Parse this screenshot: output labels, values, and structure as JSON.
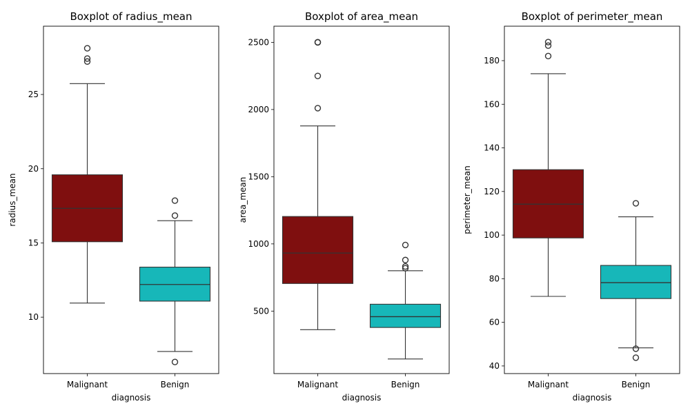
{
  "chart_data": [
    {
      "type": "box",
      "title": "Boxplot of radius_mean",
      "xlabel": "diagnosis",
      "ylabel": "radius_mean",
      "categories": [
        "Malignant",
        "Benign"
      ],
      "colors": [
        "#7f0f0f",
        "#17b7b9"
      ],
      "ylim": [
        6.2,
        29.6
      ],
      "yticks": [
        10,
        15,
        20,
        25
      ],
      "boxes": [
        {
          "category": "Malignant",
          "whisker_low": 10.95,
          "q1": 15.08,
          "median": 17.33,
          "q3": 19.59,
          "whisker_high": 25.73,
          "outliers": [
            27.22,
            27.42,
            28.11
          ]
        },
        {
          "category": "Benign",
          "whisker_low": 7.69,
          "q1": 11.08,
          "median": 12.2,
          "q3": 13.37,
          "whisker_high": 16.5,
          "outliers": [
            6.98,
            16.84,
            17.85
          ]
        }
      ]
    },
    {
      "type": "box",
      "title": "Boxplot of area_mean",
      "xlabel": "diagnosis",
      "ylabel": "area_mean",
      "categories": [
        "Malignant",
        "Benign"
      ],
      "colors": [
        "#7f0f0f",
        "#17b7b9"
      ],
      "ylim": [
        35,
        2620
      ],
      "yticks": [
        500,
        1000,
        1500,
        2000,
        2500
      ],
      "boxes": [
        {
          "category": "Malignant",
          "whisker_low": 361.6,
          "q1": 705.3,
          "median": 932.0,
          "q3": 1203.8,
          "whisker_high": 1878.0,
          "outliers": [
            2010,
            2250,
            2499,
            2501
          ]
        },
        {
          "category": "Benign",
          "whisker_low": 143.5,
          "q1": 378.2,
          "median": 458.4,
          "q3": 551.1,
          "whisker_high": 800.0,
          "outliers": [
            819,
            832,
            880,
            992
          ]
        }
      ]
    },
    {
      "type": "box",
      "title": "Boxplot of perimeter_mean",
      "xlabel": "diagnosis",
      "ylabel": "perimeter_mean",
      "categories": [
        "Malignant",
        "Benign"
      ],
      "colors": [
        "#7f0f0f",
        "#17b7b9"
      ],
      "ylim": [
        36.5,
        195.8
      ],
      "yticks": [
        40,
        60,
        80,
        100,
        120,
        140,
        160,
        180
      ],
      "boxes": [
        {
          "category": "Malignant",
          "whisker_low": 71.9,
          "q1": 98.7,
          "median": 114.2,
          "q3": 130.0,
          "whisker_high": 174.0,
          "outliers": [
            182.1,
            186.9,
            188.5
          ]
        },
        {
          "category": "Benign",
          "whisker_low": 48.3,
          "q1": 70.9,
          "median": 78.2,
          "q3": 86.1,
          "whisker_high": 108.4,
          "outliers": [
            43.8,
            47.9,
            114.6
          ]
        }
      ]
    }
  ]
}
